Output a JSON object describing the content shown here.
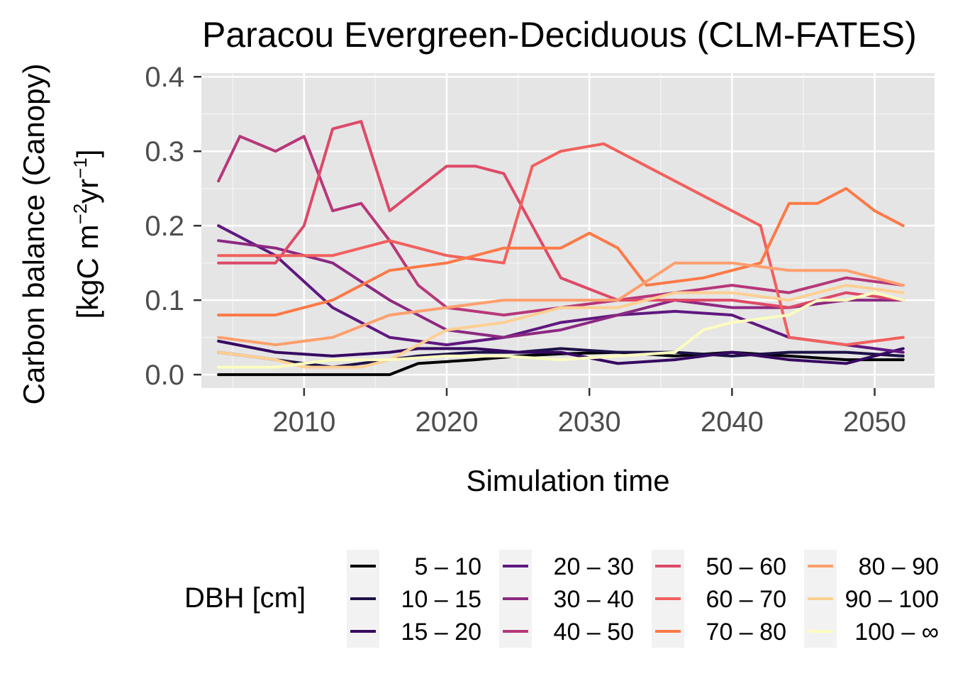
{
  "chart_data": {
    "type": "line",
    "title": "Paracou Evergreen-Deciduous (CLM-FATES)",
    "xlabel": "Simulation time",
    "ylabel_line1": "Carbon balance (Canopy)",
    "ylabel_line2_prefix": "[kgC m",
    "ylabel_line2_sup1": "−2",
    "ylabel_line2_mid": "yr",
    "ylabel_line2_sup2": "−1",
    "ylabel_line2_suffix": "]",
    "xlim": [
      2002.8,
      2054.2
    ],
    "ylim": [
      -0.018,
      0.405
    ],
    "x_ticks": [
      2010,
      2020,
      2030,
      2040,
      2050
    ],
    "x_tick_labels": [
      "2010",
      "2020",
      "2030",
      "2040",
      "2050"
    ],
    "y_ticks": [
      0.0,
      0.1,
      0.2,
      0.3,
      0.4
    ],
    "y_tick_labels": [
      "0.0",
      "0.1",
      "0.2",
      "0.3",
      "0.4"
    ],
    "grid": true,
    "legend_position": "bottom",
    "legend_title": "DBH [cm]",
    "series": [
      {
        "name": "5 – 10",
        "color": "#000004",
        "x": [
          2004,
          2008,
          2012,
          2016,
          2018,
          2022,
          2025,
          2028,
          2032,
          2036,
          2040,
          2044,
          2048,
          2052
        ],
        "y": [
          0.0,
          0.0,
          0.0,
          0.0,
          0.015,
          0.02,
          0.025,
          0.028,
          0.03,
          0.025,
          0.03,
          0.025,
          0.02,
          0.02
        ]
      },
      {
        "name": "10 – 15",
        "color": "#1d1147",
        "x": [
          2004,
          2008,
          2012,
          2016,
          2018,
          2022,
          2025,
          2028,
          2032,
          2036,
          2040,
          2044,
          2048,
          2052
        ],
        "y": [
          0.03,
          0.02,
          0.01,
          0.02,
          0.025,
          0.03,
          0.03,
          0.035,
          0.03,
          0.03,
          0.025,
          0.03,
          0.03,
          0.025
        ]
      },
      {
        "name": "15 – 20",
        "color": "#360961",
        "x": [
          2004,
          2008,
          2012,
          2016,
          2018,
          2022,
          2025,
          2028,
          2032,
          2036,
          2040,
          2044,
          2048,
          2052
        ],
        "y": [
          0.045,
          0.03,
          0.025,
          0.03,
          0.035,
          0.035,
          0.03,
          0.03,
          0.015,
          0.02,
          0.03,
          0.02,
          0.015,
          0.035
        ]
      },
      {
        "name": "20 – 30",
        "color": "#5f187f",
        "x": [
          2004,
          2008,
          2012,
          2016,
          2020,
          2024,
          2028,
          2032,
          2036,
          2040,
          2044,
          2048,
          2052
        ],
        "y": [
          0.2,
          0.16,
          0.09,
          0.05,
          0.04,
          0.05,
          0.07,
          0.08,
          0.085,
          0.08,
          0.05,
          0.04,
          0.03
        ]
      },
      {
        "name": "30 – 40",
        "color": "#8c2981",
        "x": [
          2004,
          2008,
          2012,
          2016,
          2020,
          2024,
          2028,
          2032,
          2036,
          2040,
          2044,
          2048,
          2052
        ],
        "y": [
          0.18,
          0.17,
          0.15,
          0.1,
          0.06,
          0.05,
          0.06,
          0.08,
          0.1,
          0.09,
          0.09,
          0.1,
          0.1
        ]
      },
      {
        "name": "40 – 50",
        "color": "#b73779",
        "x": [
          2004,
          2005.5,
          2008,
          2010,
          2012,
          2014,
          2016,
          2018,
          2020,
          2024,
          2028,
          2032,
          2036,
          2040,
          2044,
          2048,
          2052
        ],
        "y": [
          0.26,
          0.32,
          0.3,
          0.32,
          0.22,
          0.23,
          0.18,
          0.12,
          0.09,
          0.08,
          0.09,
          0.1,
          0.11,
          0.12,
          0.11,
          0.13,
          0.12
        ]
      },
      {
        "name": "50 – 60",
        "color": "#de4968",
        "x": [
          2004,
          2008,
          2010,
          2012,
          2014,
          2016,
          2018,
          2020,
          2022,
          2024,
          2026,
          2028,
          2032,
          2036,
          2040,
          2044,
          2048,
          2052
        ],
        "y": [
          0.15,
          0.15,
          0.2,
          0.33,
          0.34,
          0.22,
          0.25,
          0.28,
          0.28,
          0.27,
          0.2,
          0.13,
          0.1,
          0.1,
          0.1,
          0.09,
          0.11,
          0.1
        ]
      },
      {
        "name": "60 – 70",
        "color": "#f1605d",
        "x": [
          2004,
          2008,
          2012,
          2016,
          2020,
          2024,
          2026,
          2028,
          2031,
          2034,
          2038,
          2042,
          2044,
          2048,
          2052
        ],
        "y": [
          0.16,
          0.16,
          0.16,
          0.18,
          0.16,
          0.15,
          0.28,
          0.3,
          0.31,
          0.28,
          0.24,
          0.2,
          0.05,
          0.04,
          0.05
        ]
      },
      {
        "name": "70 – 80",
        "color": "#fd7946",
        "x": [
          2004,
          2008,
          2012,
          2016,
          2020,
          2024,
          2028,
          2030,
          2032,
          2034,
          2038,
          2042,
          2044,
          2046,
          2048,
          2050,
          2052
        ],
        "y": [
          0.08,
          0.08,
          0.1,
          0.14,
          0.15,
          0.17,
          0.17,
          0.19,
          0.17,
          0.12,
          0.13,
          0.15,
          0.23,
          0.23,
          0.25,
          0.22,
          0.2
        ]
      },
      {
        "name": "80 – 90",
        "color": "#fe9f6d",
        "x": [
          2004,
          2008,
          2012,
          2016,
          2020,
          2024,
          2028,
          2032,
          2036,
          2040,
          2044,
          2048,
          2052
        ],
        "y": [
          0.05,
          0.04,
          0.05,
          0.08,
          0.09,
          0.1,
          0.1,
          0.1,
          0.15,
          0.15,
          0.14,
          0.14,
          0.12
        ]
      },
      {
        "name": "90 – 100",
        "color": "#fecf92",
        "x": [
          2004,
          2008,
          2010,
          2012,
          2014,
          2016,
          2020,
          2024,
          2028,
          2032,
          2036,
          2040,
          2044,
          2048,
          2052
        ],
        "y": [
          0.03,
          0.02,
          0.01,
          0.01,
          0.01,
          0.02,
          0.06,
          0.07,
          0.09,
          0.09,
          0.11,
          0.11,
          0.1,
          0.12,
          0.11
        ]
      },
      {
        "name": "100 – ∞",
        "color": "#fcfdbf",
        "x": [
          2004,
          2008,
          2012,
          2016,
          2020,
          2024,
          2028,
          2032,
          2036,
          2038,
          2040,
          2044,
          2046,
          2048,
          2050,
          2052
        ],
        "y": [
          0.01,
          0.01,
          0.02,
          0.02,
          0.025,
          0.025,
          0.02,
          0.025,
          0.03,
          0.06,
          0.07,
          0.08,
          0.1,
          0.1,
          0.11,
          0.1
        ]
      }
    ]
  }
}
